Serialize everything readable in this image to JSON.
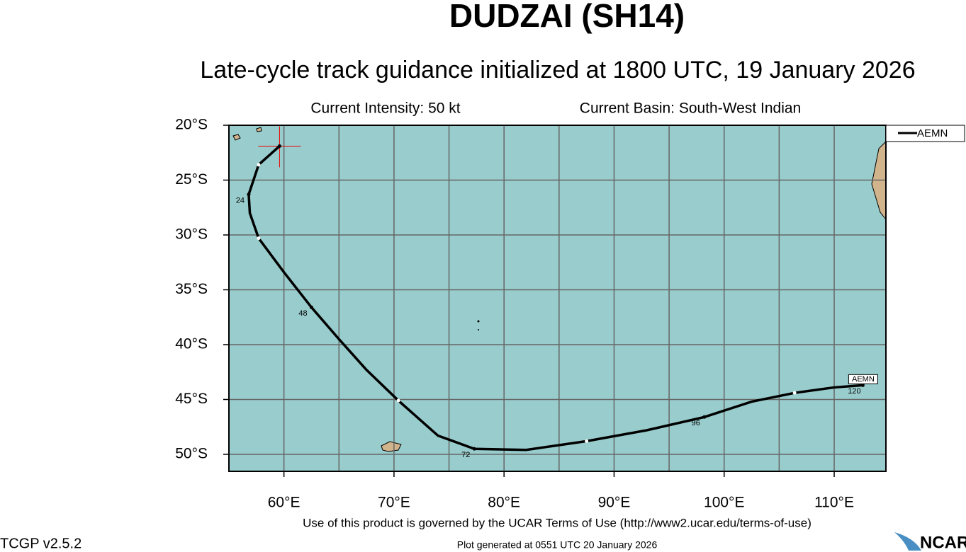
{
  "chart_data": {
    "type": "line",
    "title": "DUDZAI (SH14)",
    "subtitle": "Late-cycle track guidance initialized at 1800 UTC, 19 January 2026",
    "intensity": "Current Intensity: 50 kt",
    "basin": "Current Basin: South-West Indian",
    "terms": "Use of this product is governed by the UCAR Terms of Use (http://www2.ucar.edu/terms-of-use)",
    "version": "TCGP v2.5.2",
    "generated": "Plot generated at 0551 UTC  20 January 2026",
    "logo": "NCAR",
    "xlim": [
      55,
      114.7
    ],
    "ylim": [
      -51.55,
      -20
    ],
    "xticks": [
      {
        "value": 60,
        "label": "60°E"
      },
      {
        "value": 70,
        "label": "70°E"
      },
      {
        "value": 80,
        "label": "80°E"
      },
      {
        "value": 90,
        "label": "90°E"
      },
      {
        "value": 100,
        "label": "100°E"
      },
      {
        "value": 110,
        "label": "110°E"
      }
    ],
    "xminor": [
      65,
      75,
      85,
      95,
      105
    ],
    "yticks": [
      {
        "value": -20,
        "label": "20°S"
      },
      {
        "value": -25,
        "label": "25°S"
      },
      {
        "value": -30,
        "label": "30°S"
      },
      {
        "value": -35,
        "label": "35°S"
      },
      {
        "value": -40,
        "label": "40°S"
      },
      {
        "value": -45,
        "label": "45°S"
      },
      {
        "value": -50,
        "label": "50°S"
      }
    ],
    "grid": true,
    "ocean_color": "#99cccc",
    "land_color": "#d2b48c",
    "series": [
      {
        "name": "AEMN",
        "color": "#000000",
        "x": [
          59.6,
          57.7,
          56.8,
          56.9,
          57.7,
          60,
          62.5,
          65,
          67.5,
          70.4,
          74,
          77.3,
          82,
          87.5,
          93,
          98.2,
          102.5,
          106.4,
          110,
          112.6
        ],
        "values": [
          -21.9,
          -23.6,
          -26.3,
          -28.0,
          -30.3,
          -33.4,
          -36.6,
          -39.5,
          -42.3,
          -45.1,
          -48.3,
          -49.5,
          -49.6,
          -48.8,
          -47.8,
          -46.6,
          -45.2,
          -44.4,
          -43.9,
          -43.7
        ],
        "point_labels": [
          null,
          null,
          "24",
          null,
          null,
          null,
          "48",
          null,
          null,
          null,
          null,
          "72",
          null,
          null,
          null,
          "96",
          null,
          null,
          null,
          "120"
        ],
        "marker_colors": [
          "#000000",
          "#ffffff",
          "#000000",
          null,
          "#ffffff",
          null,
          "#000000",
          null,
          null,
          "#ffffff",
          null,
          "#000000",
          null,
          "#ffffff",
          null,
          "#000000",
          null,
          "#ffffff",
          null,
          "#000000"
        ]
      }
    ]
  }
}
